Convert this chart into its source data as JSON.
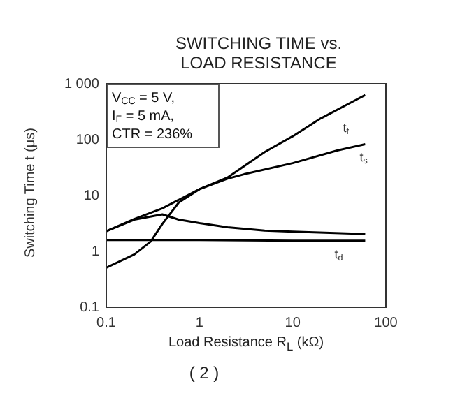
{
  "chart_data": {
    "type": "line",
    "title": "SWITCHING TIME vs. LOAD RESISTANCE",
    "xlabel": "Load Resistance  R$_{L}$ (kΩ)",
    "ylabel": "Switching Time  t (μs)",
    "log": "xy",
    "xlim": [
      0.1,
      100
    ],
    "xticks": [
      0.1,
      1,
      10,
      100
    ],
    "ylim": [
      0.1,
      1000
    ],
    "yticks": [
      0.1,
      1,
      10,
      100,
      {
        "value": 1000,
        "label": "1 000"
      }
    ],
    "grid": false,
    "legend": false,
    "marker": "none",
    "line_style": "solid",
    "annotations": [
      "V$_{CC}$ = 5 V,",
      "I$_{F}$ = 5 mA,",
      "CTR = 236%",
      "( 2 )"
    ],
    "series": [
      {
        "name": "t$_{f}$",
        "color": "#000000",
        "x": [
          0.1,
          0.2,
          0.4,
          1,
          2,
          5,
          10,
          20,
          60
        ],
        "values": [
          2.3,
          3.8,
          5.9,
          13,
          21,
          60,
          115,
          240,
          630
        ]
      },
      {
        "name": "t$_{s}$",
        "color": "#000000",
        "x": [
          0.1,
          0.2,
          0.3,
          0.4,
          0.6,
          1,
          2,
          3,
          10,
          30,
          60
        ],
        "values": [
          0.51,
          0.88,
          1.5,
          3.1,
          7.5,
          13,
          20,
          24,
          38,
          64,
          83
        ]
      },
      {
        "color": "#000000",
        "x": [
          0.1,
          0.2,
          0.4,
          0.6,
          1,
          2,
          5,
          10,
          60
        ],
        "values": [
          2.3,
          3.7,
          4.6,
          3.7,
          3.2,
          2.7,
          2.35,
          2.25,
          2.05
        ]
      },
      {
        "name": "t$_{d}$",
        "color": "#000000",
        "x": [
          0.1,
          1,
          10,
          60
        ],
        "values": [
          1.6,
          1.6,
          1.55,
          1.55
        ]
      }
    ]
  }
}
